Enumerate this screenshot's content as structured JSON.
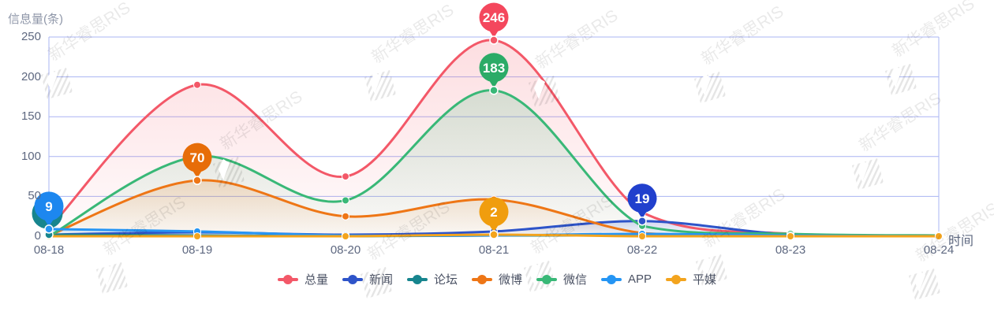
{
  "chart_data": {
    "type": "line",
    "title": "信息量(条)",
    "xlabel": "时间",
    "x": [
      "08-18",
      "08-19",
      "08-20",
      "08-21",
      "08-22",
      "08-23",
      "08-24"
    ],
    "yticks": [
      0,
      50,
      100,
      150,
      200,
      250
    ],
    "ylim": [
      0,
      250
    ],
    "grid": true,
    "smooth": true,
    "legend_position": "bottom",
    "series": [
      {
        "id": "total",
        "name": "总量",
        "color": "#f35868",
        "badge_color": "#f4475d",
        "values": [
          10,
          190,
          75,
          246,
          30,
          3,
          1
        ],
        "max_label": {
          "x": "08-21",
          "value": 246,
          "hidden": false
        }
      },
      {
        "id": "news",
        "name": "新闻",
        "color": "#2e54c9",
        "badge_color": "#2140cd",
        "values": [
          2,
          5,
          2,
          6,
          19,
          2,
          0
        ],
        "max_label": {
          "x": "08-22",
          "value": 19,
          "hidden": false
        }
      },
      {
        "id": "forum",
        "name": "论坛",
        "color": "#17858e",
        "badge_color": "#17858e",
        "values": [
          2,
          1,
          0,
          1,
          1,
          0,
          0
        ],
        "max_label": {
          "x": "08-18",
          "value": "",
          "hidden": true
        }
      },
      {
        "id": "weibo",
        "name": "微博",
        "color": "#ee7616",
        "badge_color": "#e76d08",
        "values": [
          1,
          70,
          25,
          46,
          4,
          1,
          0
        ],
        "max_label": {
          "x": "08-19",
          "value": 70,
          "hidden": false
        }
      },
      {
        "id": "wechat",
        "name": "微信",
        "color": "#39b877",
        "badge_color": "#2cab67",
        "values": [
          0,
          100,
          45,
          183,
          13,
          3,
          1
        ],
        "max_label": {
          "x": "08-21",
          "value": 183,
          "hidden": false
        }
      },
      {
        "id": "app",
        "name": "APP",
        "color": "#2595f4",
        "badge_color": "#1d87ef",
        "values": [
          9,
          6,
          1,
          1,
          3,
          1,
          0
        ],
        "max_label": {
          "x": "08-18",
          "value": 9,
          "hidden": false
        }
      },
      {
        "id": "print",
        "name": "平媒",
        "color": "#f3a41e",
        "badge_color": "#f09d0e",
        "values": [
          0,
          0,
          0,
          2,
          0,
          0,
          0
        ],
        "max_label": {
          "x": "08-21",
          "value": 2,
          "hidden": false
        }
      }
    ],
    "colors": {
      "gridline": "#aab4f3",
      "axis_text": "#5e6880",
      "title_text": "#8f97a9",
      "legend_text": "#4a5163"
    }
  },
  "watermark": {
    "text": "新华睿思RIS"
  }
}
